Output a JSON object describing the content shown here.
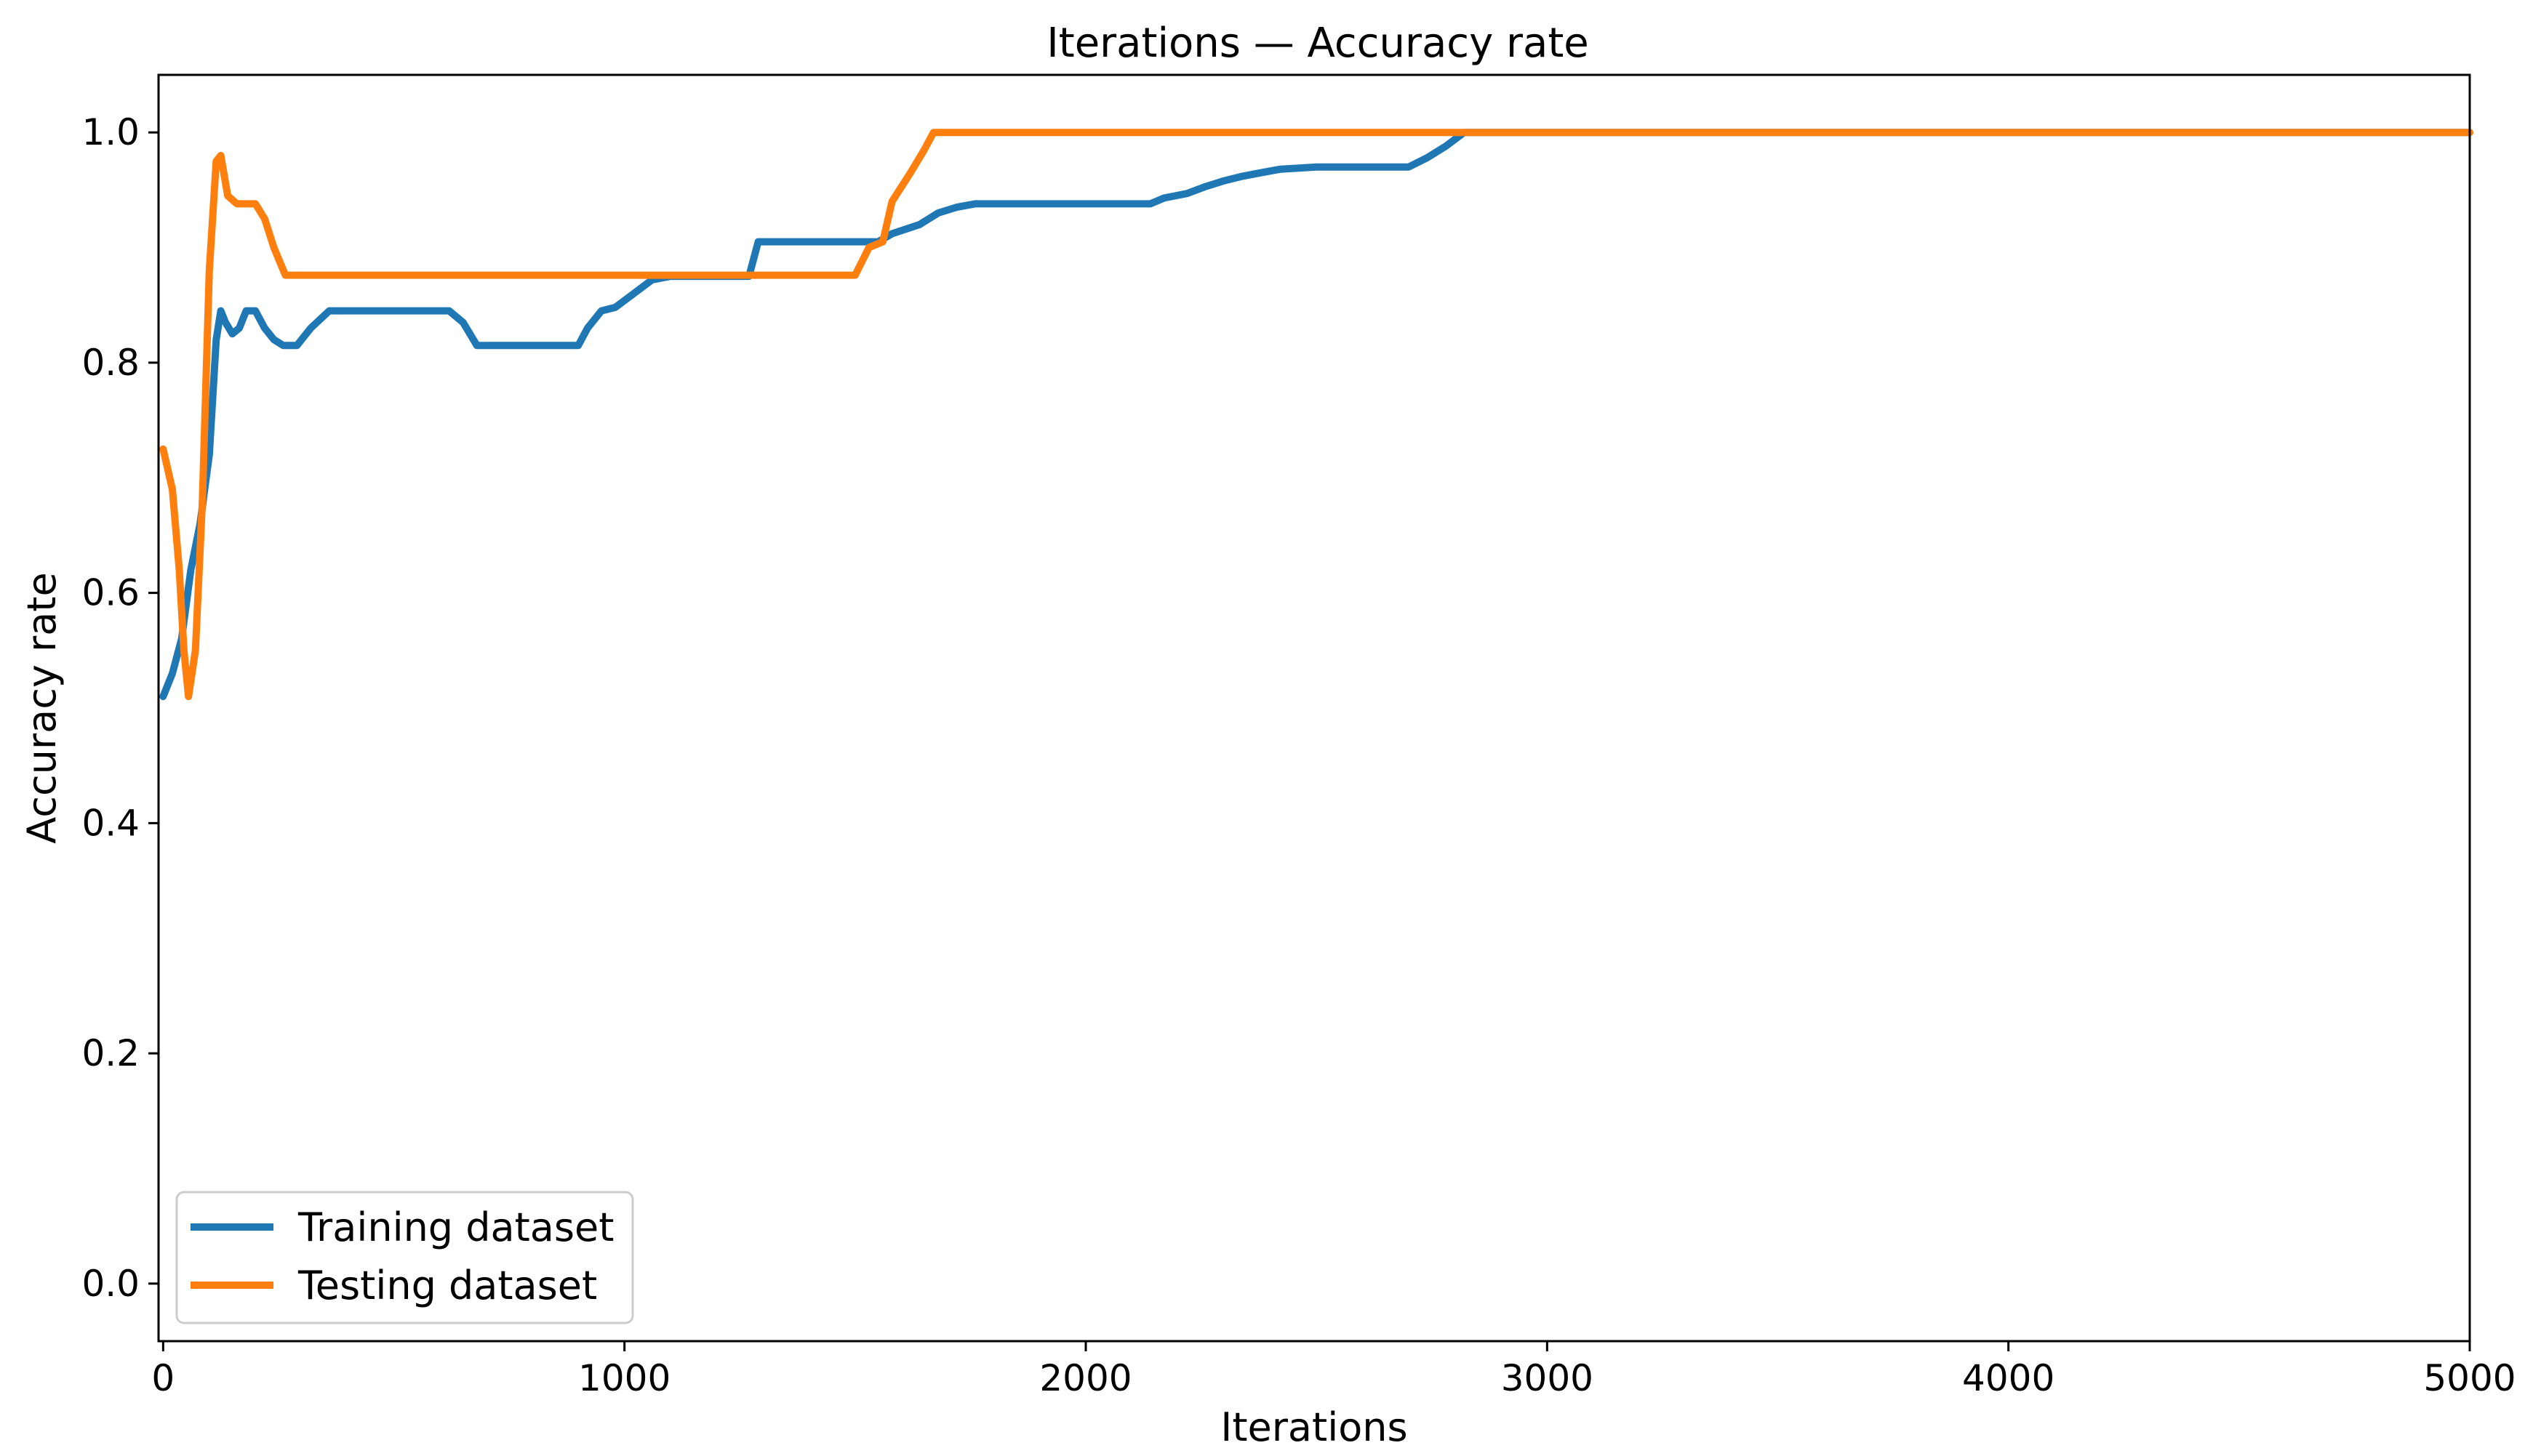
{
  "chart_data": {
    "type": "line",
    "title": "Iterations — Accuracy rate",
    "xlabel": "Iterations",
    "ylabel": "Accuracy rate",
    "xlim": [
      -10,
      5000
    ],
    "ylim": [
      -0.05,
      1.05
    ],
    "xticks": [
      0,
      1000,
      2000,
      3000,
      4000,
      5000
    ],
    "yticks": [
      0.0,
      0.2,
      0.4,
      0.6,
      0.8,
      1.0
    ],
    "grid": false,
    "legend_position": "lower-left",
    "series": [
      {
        "name": "Training dataset",
        "color": "#1f77b4",
        "points": [
          [
            0,
            0.51
          ],
          [
            20,
            0.53
          ],
          [
            40,
            0.56
          ],
          [
            60,
            0.62
          ],
          [
            80,
            0.66
          ],
          [
            100,
            0.72
          ],
          [
            115,
            0.82
          ],
          [
            125,
            0.845
          ],
          [
            135,
            0.835
          ],
          [
            150,
            0.825
          ],
          [
            165,
            0.83
          ],
          [
            180,
            0.845
          ],
          [
            200,
            0.845
          ],
          [
            220,
            0.83
          ],
          [
            240,
            0.82
          ],
          [
            260,
            0.815
          ],
          [
            290,
            0.815
          ],
          [
            320,
            0.83
          ],
          [
            360,
            0.845
          ],
          [
            620,
            0.845
          ],
          [
            650,
            0.835
          ],
          [
            680,
            0.815
          ],
          [
            900,
            0.815
          ],
          [
            920,
            0.83
          ],
          [
            950,
            0.845
          ],
          [
            980,
            0.848
          ],
          [
            1020,
            0.86
          ],
          [
            1060,
            0.872
          ],
          [
            1100,
            0.875
          ],
          [
            1270,
            0.875
          ],
          [
            1290,
            0.905
          ],
          [
            1550,
            0.905
          ],
          [
            1580,
            0.912
          ],
          [
            1640,
            0.92
          ],
          [
            1680,
            0.93
          ],
          [
            1720,
            0.935
          ],
          [
            1760,
            0.938
          ],
          [
            2140,
            0.938
          ],
          [
            2170,
            0.943
          ],
          [
            2220,
            0.947
          ],
          [
            2260,
            0.953
          ],
          [
            2300,
            0.958
          ],
          [
            2340,
            0.962
          ],
          [
            2380,
            0.965
          ],
          [
            2420,
            0.968
          ],
          [
            2500,
            0.97
          ],
          [
            2700,
            0.97
          ],
          [
            2740,
            0.978
          ],
          [
            2780,
            0.988
          ],
          [
            2820,
            1.0
          ],
          [
            5000,
            1.0
          ]
        ]
      },
      {
        "name": "Testing dataset",
        "color": "#ff7f0e",
        "points": [
          [
            0,
            0.725
          ],
          [
            20,
            0.69
          ],
          [
            35,
            0.62
          ],
          [
            45,
            0.55
          ],
          [
            55,
            0.51
          ],
          [
            70,
            0.55
          ],
          [
            85,
            0.68
          ],
          [
            100,
            0.88
          ],
          [
            115,
            0.975
          ],
          [
            125,
            0.98
          ],
          [
            140,
            0.945
          ],
          [
            160,
            0.938
          ],
          [
            200,
            0.938
          ],
          [
            220,
            0.925
          ],
          [
            240,
            0.9
          ],
          [
            265,
            0.876
          ],
          [
            1500,
            0.876
          ],
          [
            1530,
            0.9
          ],
          [
            1560,
            0.905
          ],
          [
            1580,
            0.94
          ],
          [
            1620,
            0.965
          ],
          [
            1650,
            0.985
          ],
          [
            1670,
            1.0
          ],
          [
            5000,
            1.0
          ]
        ]
      }
    ]
  }
}
